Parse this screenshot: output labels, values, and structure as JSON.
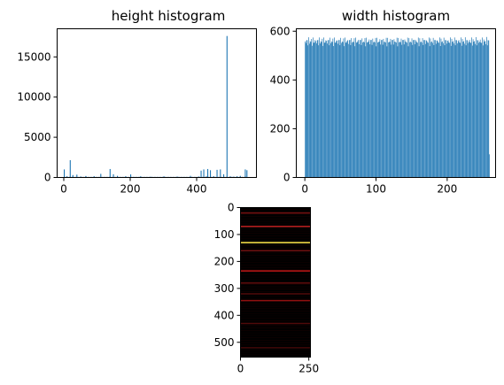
{
  "chart_data": [
    {
      "type": "bar",
      "title": "height histogram",
      "xlabel": "",
      "ylabel": "",
      "xlim": [
        -20,
        580
      ],
      "ylim": [
        0,
        18500
      ],
      "color": "#1f77b4",
      "xticks": [
        0,
        200,
        400
      ],
      "yticks": [
        0,
        5000,
        10000,
        15000
      ],
      "xtick_labels": [
        "0",
        "200",
        "400"
      ],
      "ytick_labels": [
        "0",
        "5000",
        "10000",
        "15000"
      ],
      "x": [
        0,
        8,
        18,
        26,
        38,
        50,
        65,
        90,
        110,
        138,
        148,
        160,
        185,
        200,
        230,
        260,
        300,
        340,
        380,
        405,
        412,
        420,
        428,
        432,
        440,
        450,
        460,
        470,
        480,
        490,
        500,
        510,
        520,
        530,
        545,
        550
      ],
      "values": [
        1000,
        150,
        2150,
        300,
        350,
        120,
        180,
        150,
        450,
        1050,
        400,
        200,
        150,
        380,
        150,
        100,
        150,
        120,
        200,
        120,
        850,
        1000,
        150,
        1050,
        900,
        150,
        950,
        1000,
        400,
        17600,
        150,
        100,
        150,
        200,
        1000,
        900
      ]
    },
    {
      "type": "bar",
      "title": "width histogram",
      "xlabel": "",
      "ylabel": "",
      "xlim": [
        -12,
        268
      ],
      "ylim": [
        0,
        610
      ],
      "color": "#1f77b4",
      "xticks": [
        0,
        100,
        200
      ],
      "yticks": [
        0,
        200,
        400,
        600
      ],
      "xtick_labels": [
        "0",
        "100",
        "200"
      ],
      "ytick_labels": [
        "0",
        "200",
        "400",
        "600"
      ],
      "bins": 260,
      "value_range": [
        538,
        578
      ],
      "last_bin_value": 95
    },
    {
      "type": "heatmap",
      "title": "",
      "xlim": [
        0,
        256
      ],
      "ylim": [
        555,
        0
      ],
      "cmap": "hot",
      "xticks": [
        0,
        250
      ],
      "yticks": [
        0,
        100,
        200,
        300,
        400,
        500
      ],
      "xtick_labels": [
        "0",
        "250"
      ],
      "ytick_labels": [
        "0",
        "100",
        "200",
        "300",
        "400",
        "500"
      ],
      "bright_rows": [
        {
          "row": 130,
          "color": "#ffe84a"
        },
        {
          "row": 70,
          "color": "#c02020"
        },
        {
          "row": 235,
          "color": "#c01818"
        },
        {
          "row": 345,
          "color": "#901010"
        },
        {
          "row": 20,
          "color": "#701010"
        },
        {
          "row": 160,
          "color": "#701010"
        },
        {
          "row": 280,
          "color": "#600c0c"
        },
        {
          "row": 320,
          "color": "#500a0a"
        },
        {
          "row": 430,
          "color": "#500a0a"
        },
        {
          "row": 520,
          "color": "#400808"
        }
      ]
    }
  ]
}
